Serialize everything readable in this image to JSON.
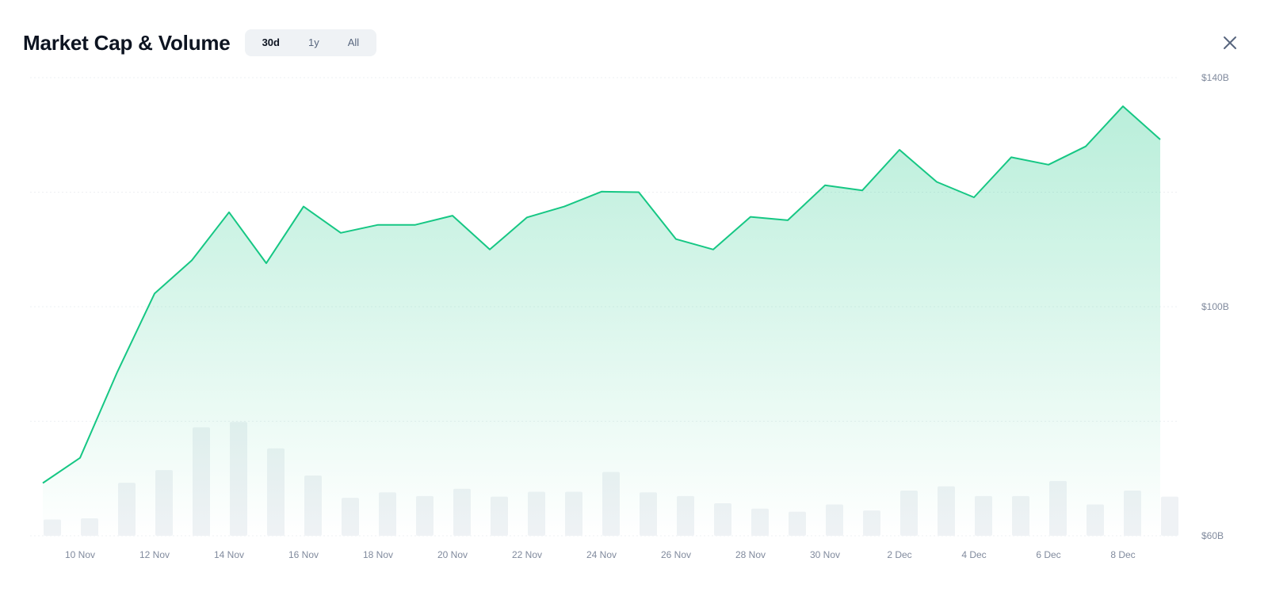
{
  "header": {
    "title": "Market Cap & Volume",
    "tabs": [
      {
        "label": "30d",
        "active": true
      },
      {
        "label": "1y",
        "active": false
      },
      {
        "label": "All",
        "active": false
      }
    ]
  },
  "icons": {
    "close": "close-icon"
  },
  "colors": {
    "line": "#16c784",
    "fill": "#16c784",
    "bar": "#eff2f5",
    "grid": "#eef0f3",
    "tick": "#808a9d"
  },
  "chart_data": {
    "type": "area",
    "title": "Market Cap & Volume",
    "xlabel": "",
    "ylabel": "",
    "ylim": [
      60,
      140
    ],
    "y_unit": "B USD",
    "y_ticks": [
      "$140B",
      "$100B",
      "$60B"
    ],
    "x_tick_labels": [
      "10 Nov",
      "12 Nov",
      "14 Nov",
      "16 Nov",
      "18 Nov",
      "20 Nov",
      "22 Nov",
      "24 Nov",
      "26 Nov",
      "28 Nov",
      "30 Nov",
      "2 Dec",
      "4 Dec",
      "6 Dec",
      "8 Dec"
    ],
    "grid": true,
    "series": [
      {
        "values": [
          69.2,
          73.6,
          88.6,
          102.3,
          108.1,
          116.5,
          107.6,
          117.5,
          112.9,
          114.3,
          114.3,
          115.9,
          110.0,
          115.6,
          117.5,
          120.1,
          120.0,
          111.8,
          110.0,
          115.7,
          115.1,
          121.2,
          120.3,
          127.4,
          121.8,
          119.1,
          126.1,
          124.8,
          128.0,
          135.0,
          129.2
        ]
      }
    ],
    "volume": {
      "type": "bar",
      "values": [
        2.7,
        2.9,
        8.8,
        10.9,
        18.0,
        18.9,
        14.5,
        10.0,
        6.3,
        7.2,
        6.6,
        7.8,
        6.5,
        7.3,
        7.3,
        10.6,
        7.2,
        6.6,
        5.4,
        4.5,
        4.0,
        5.2,
        4.2,
        7.5,
        8.2,
        6.6,
        6.6,
        9.1,
        5.2,
        7.5,
        6.5
      ]
    }
  }
}
